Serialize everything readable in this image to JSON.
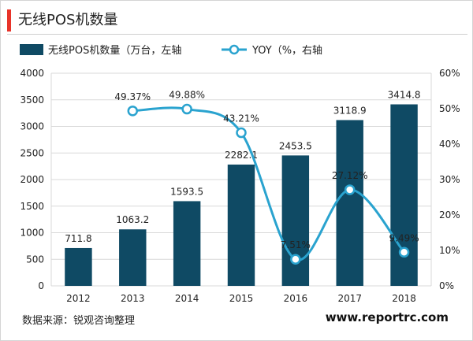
{
  "header": {
    "title": "无线POS机数量",
    "accent_color": "#e8342a"
  },
  "footer": {
    "source": "数据来源：锐观咨询整理",
    "website": "www.reportrc.com"
  },
  "colors": {
    "bar": "#0f4a64",
    "line": "#2aa3cf",
    "marker_fill": "#ffffff",
    "grid": "#d9d9d9",
    "axis_text": "#222222"
  },
  "chart_data": {
    "type": "bar",
    "categories": [
      "2012",
      "2013",
      "2014",
      "2015",
      "2016",
      "2017",
      "2018"
    ],
    "series": [
      {
        "name": "无线POS机数量（万台，左轴",
        "chart_type": "bar",
        "axis": "left",
        "values": [
          711.8,
          1063.2,
          1593.5,
          2282.1,
          2453.5,
          3118.9,
          3414.8
        ],
        "labels": [
          "711.8",
          "1063.2",
          "1593.5",
          "2282.1",
          "2453.5",
          "3118.9",
          "3414.8"
        ]
      },
      {
        "name": "YOY（%，右轴",
        "chart_type": "line",
        "axis": "right",
        "smooth": true,
        "values": [
          null,
          49.37,
          49.88,
          43.21,
          7.51,
          27.12,
          9.49
        ],
        "labels": [
          "",
          "49.37%",
          "49.88%",
          "43.21%",
          "7.51%",
          "27.12%",
          "9.49%"
        ]
      }
    ],
    "y_left": {
      "min": 0,
      "max": 4000,
      "ticks": [
        "0",
        "500",
        "1000",
        "1500",
        "2000",
        "2500",
        "3000",
        "3500",
        "4000"
      ]
    },
    "y_right": {
      "min": 0,
      "max": 60,
      "ticks": [
        "0%",
        "10%",
        "20%",
        "30%",
        "40%",
        "50%",
        "60%"
      ]
    },
    "grid": true,
    "legend_position": "top"
  }
}
